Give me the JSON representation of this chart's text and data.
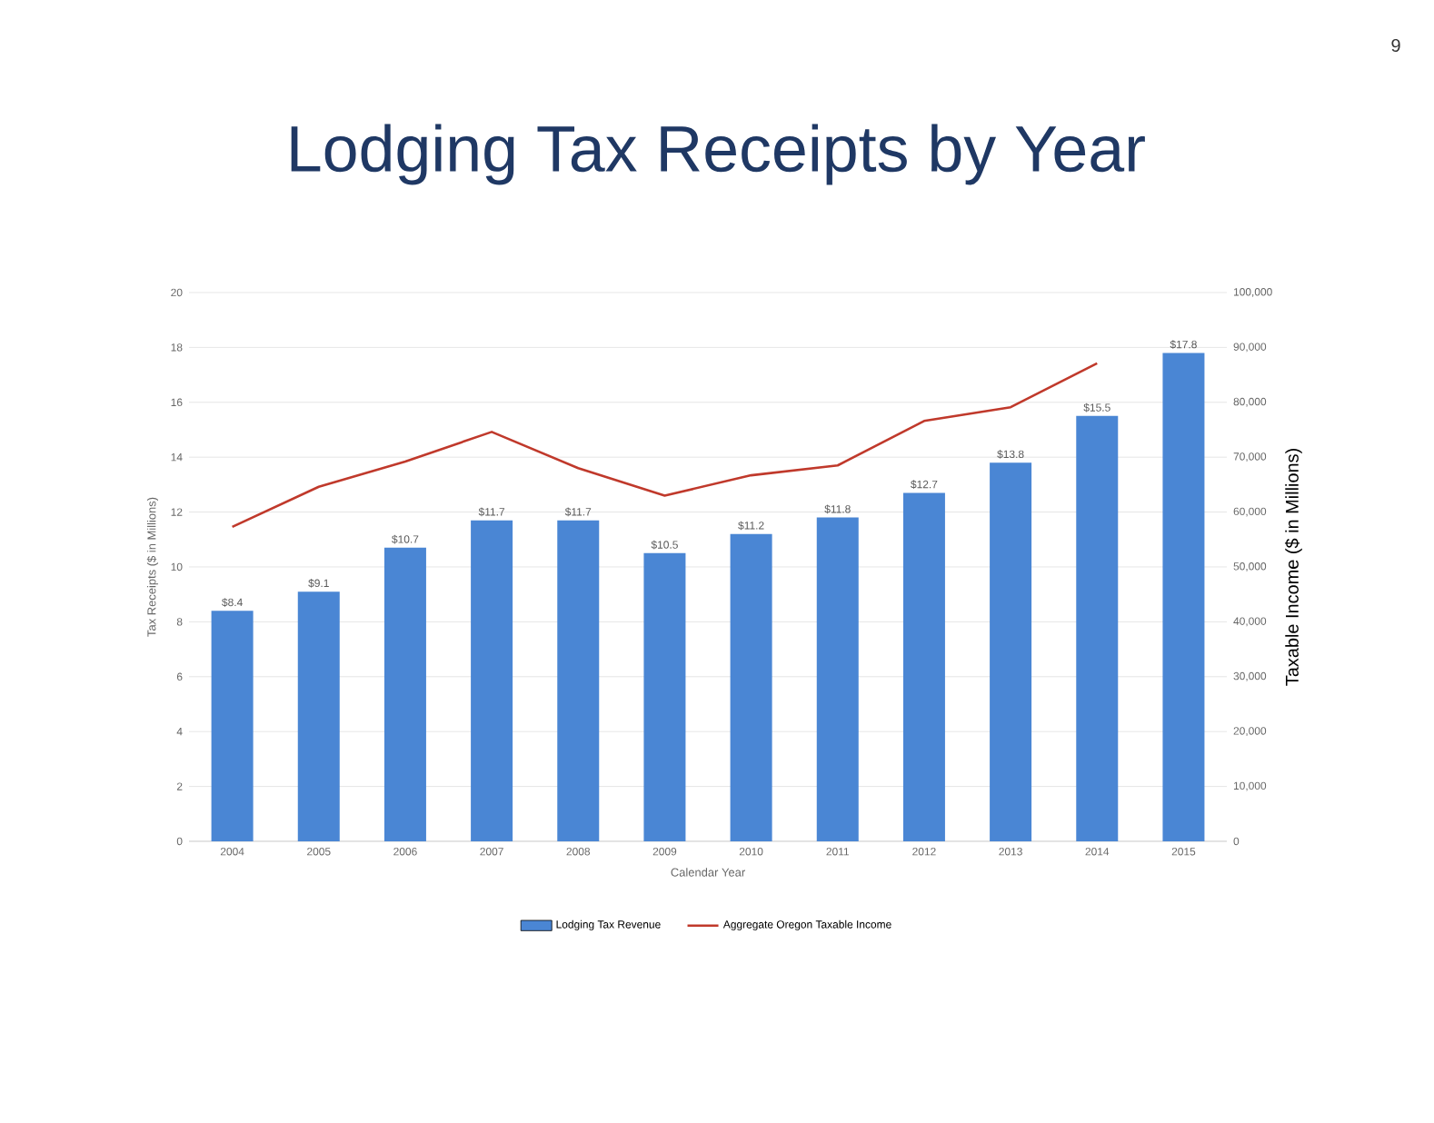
{
  "chart_data": {
    "type": "bar",
    "title": "Lodging Tax Receipts by Year",
    "xlabel": "Calendar Year",
    "ylabel": "Tax Receipts ($ in Millions)",
    "y2label": "Taxable Income ($ in Millions)",
    "annotations": [
      "9"
    ],
    "categories": [
      "2004",
      "2005",
      "2006",
      "2007",
      "2008",
      "2009",
      "2010",
      "2011",
      "2012",
      "2013",
      "2014",
      "2015"
    ],
    "series": [
      {
        "name": "Lodging Tax Revenue",
        "color": "#4a86d4",
        "values": [
          8.4,
          9.1,
          10.7,
          11.7,
          11.7,
          10.5,
          11.2,
          11.8,
          12.7,
          13.8,
          15.5,
          17.8
        ],
        "value_labels": [
          "$8.4",
          "$9.1",
          "$10.7",
          "$11.7",
          "$11.7",
          "$10.5",
          "$11.2",
          "$11.8",
          "$12.7",
          "$13.8",
          "$15.5",
          "$17.8"
        ]
      },
      {
        "name": "Aggregate Oregon Taxable Income",
        "type": "line",
        "axis": "y2",
        "color": "#c0392b",
        "values": [
          57300,
          64600,
          69200,
          74600,
          68000,
          63000,
          66700,
          68500,
          76600,
          79100,
          87100,
          null
        ]
      }
    ],
    "ylim": [
      0,
      20
    ],
    "yticks": [
      0,
      2,
      4,
      6,
      8,
      10,
      12,
      14,
      16,
      18,
      20
    ],
    "y2lim": [
      0,
      100000
    ],
    "y2ticks": [
      {
        "value": 0,
        "label": "0"
      },
      {
        "value": 10000,
        "label": "10,000"
      },
      {
        "value": 20000,
        "label": "20,000"
      },
      {
        "value": 30000,
        "label": "30,000"
      },
      {
        "value": 40000,
        "label": "40,000"
      },
      {
        "value": 50000,
        "label": "50,000"
      },
      {
        "value": 60000,
        "label": "60,000"
      },
      {
        "value": 70000,
        "label": "70,000"
      },
      {
        "value": 80000,
        "label": "80,000"
      },
      {
        "value": 90000,
        "label": "90,000"
      },
      {
        "value": 100000,
        "label": "100,000"
      }
    ],
    "grid": "y",
    "legend": "bottom"
  }
}
